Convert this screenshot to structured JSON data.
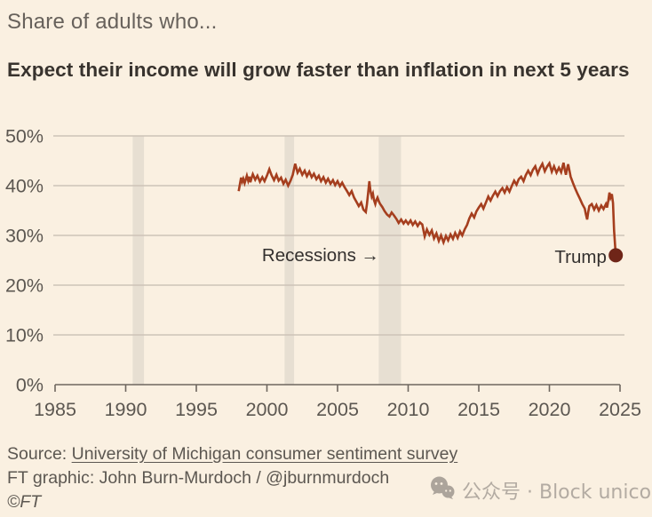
{
  "header": {
    "kicker": "Share of adults who...",
    "title": "Expect their income will grow faster than inflation in next 5 years"
  },
  "chart_data": {
    "type": "line",
    "title": "Share of adults who... Expect their income will grow faster than inflation in next 5 years",
    "grid": "horizontal",
    "x_axis": {
      "ticks": [
        1985,
        1990,
        1995,
        2000,
        2005,
        2010,
        2015,
        2020,
        2025
      ],
      "range": [
        1985,
        2025.6
      ]
    },
    "y_axis": {
      "ticks": [
        0,
        10,
        20,
        30,
        40,
        50
      ],
      "suffix": "%",
      "range": [
        0,
        50
      ]
    },
    "recessions": [
      [
        1990.5,
        1991.3
      ],
      [
        2001.25,
        2001.92
      ],
      [
        2007.92,
        2009.5
      ]
    ],
    "annotations": [
      {
        "text": "Recessions →",
        "year": 1999.65,
        "value": 24.8,
        "anchor": "start"
      },
      {
        "text": "Trump",
        "year": 2024.05,
        "value": 24.5,
        "anchor": "end"
      }
    ],
    "end_marker": {
      "year": 2024.7,
      "value": 26.0,
      "label": "Trump"
    },
    "series": [
      {
        "name": "Share expecting income to grow faster than inflation in next 5 years (%)",
        "points": [
          [
            1998.0,
            38.9
          ],
          [
            1998.08,
            40.2
          ],
          [
            1998.17,
            41.6
          ],
          [
            1998.25,
            40.8
          ],
          [
            1998.33,
            41.4
          ],
          [
            1998.42,
            40.5
          ],
          [
            1998.5,
            41.2
          ],
          [
            1998.58,
            42.0
          ],
          [
            1998.67,
            41.0
          ],
          [
            1998.75,
            41.8
          ],
          [
            1998.83,
            40.7
          ],
          [
            1998.92,
            41.6
          ],
          [
            1999.0,
            42.3
          ],
          [
            1999.17,
            41.2
          ],
          [
            1999.33,
            42.0
          ],
          [
            1999.5,
            40.8
          ],
          [
            1999.67,
            41.7
          ],
          [
            1999.83,
            40.9
          ],
          [
            2000.0,
            42.0
          ],
          [
            2000.17,
            43.3
          ],
          [
            2000.33,
            42.1
          ],
          [
            2000.5,
            41.1
          ],
          [
            2000.67,
            42.2
          ],
          [
            2000.83,
            41.0
          ],
          [
            2001.0,
            41.6
          ],
          [
            2001.17,
            40.4
          ],
          [
            2001.33,
            41.2
          ],
          [
            2001.5,
            40.0
          ],
          [
            2001.67,
            41.0
          ],
          [
            2001.83,
            42.2
          ],
          [
            2002.0,
            44.4
          ],
          [
            2002.17,
            42.6
          ],
          [
            2002.33,
            43.4
          ],
          [
            2002.5,
            42.2
          ],
          [
            2002.67,
            43.0
          ],
          [
            2002.83,
            41.9
          ],
          [
            2003.0,
            42.8
          ],
          [
            2003.17,
            41.7
          ],
          [
            2003.33,
            42.4
          ],
          [
            2003.5,
            41.3
          ],
          [
            2003.67,
            42.0
          ],
          [
            2003.83,
            40.9
          ],
          [
            2004.0,
            41.7
          ],
          [
            2004.17,
            40.6
          ],
          [
            2004.33,
            41.4
          ],
          [
            2004.5,
            40.4
          ],
          [
            2004.67,
            41.1
          ],
          [
            2004.83,
            40.1
          ],
          [
            2005.0,
            40.9
          ],
          [
            2005.17,
            39.9
          ],
          [
            2005.33,
            40.6
          ],
          [
            2005.5,
            39.7
          ],
          [
            2005.67,
            38.9
          ],
          [
            2005.83,
            38.1
          ],
          [
            2006.0,
            38.9
          ],
          [
            2006.17,
            37.6
          ],
          [
            2006.33,
            36.8
          ],
          [
            2006.5,
            35.9
          ],
          [
            2006.67,
            36.6
          ],
          [
            2006.83,
            35.2
          ],
          [
            2007.0,
            34.7
          ],
          [
            2007.08,
            36.3
          ],
          [
            2007.17,
            38.6
          ],
          [
            2007.25,
            40.9
          ],
          [
            2007.33,
            39.0
          ],
          [
            2007.42,
            37.8
          ],
          [
            2007.5,
            38.4
          ],
          [
            2007.58,
            37.1
          ],
          [
            2007.67,
            36.3
          ],
          [
            2007.75,
            37.1
          ],
          [
            2007.83,
            37.6
          ],
          [
            2007.92,
            36.9
          ],
          [
            2008.0,
            36.4
          ],
          [
            2008.17,
            35.7
          ],
          [
            2008.33,
            34.9
          ],
          [
            2008.5,
            34.2
          ],
          [
            2008.67,
            33.8
          ],
          [
            2008.83,
            34.6
          ],
          [
            2009.0,
            34.0
          ],
          [
            2009.17,
            33.3
          ],
          [
            2009.33,
            32.5
          ],
          [
            2009.5,
            33.2
          ],
          [
            2009.67,
            32.4
          ],
          [
            2009.83,
            33.0
          ],
          [
            2010.0,
            32.3
          ],
          [
            2010.17,
            33.0
          ],
          [
            2010.33,
            32.1
          ],
          [
            2010.5,
            32.8
          ],
          [
            2010.67,
            31.9
          ],
          [
            2010.83,
            32.6
          ],
          [
            2011.0,
            32.2
          ],
          [
            2011.17,
            29.8
          ],
          [
            2011.33,
            31.2
          ],
          [
            2011.5,
            30.1
          ],
          [
            2011.67,
            31.0
          ],
          [
            2011.83,
            29.4
          ],
          [
            2012.0,
            30.4
          ],
          [
            2012.17,
            28.9
          ],
          [
            2012.33,
            30.0
          ],
          [
            2012.5,
            28.6
          ],
          [
            2012.67,
            29.9
          ],
          [
            2012.83,
            29.0
          ],
          [
            2013.0,
            30.2
          ],
          [
            2013.17,
            29.3
          ],
          [
            2013.33,
            30.5
          ],
          [
            2013.5,
            29.5
          ],
          [
            2013.67,
            30.8
          ],
          [
            2013.83,
            30.0
          ],
          [
            2014.0,
            31.2
          ],
          [
            2014.17,
            32.1
          ],
          [
            2014.33,
            33.4
          ],
          [
            2014.5,
            34.4
          ],
          [
            2014.67,
            33.6
          ],
          [
            2014.83,
            34.8
          ],
          [
            2015.0,
            35.6
          ],
          [
            2015.17,
            36.3
          ],
          [
            2015.33,
            35.4
          ],
          [
            2015.5,
            36.6
          ],
          [
            2015.67,
            37.8
          ],
          [
            2015.83,
            37.0
          ],
          [
            2016.0,
            38.0
          ],
          [
            2016.17,
            38.8
          ],
          [
            2016.33,
            37.9
          ],
          [
            2016.5,
            38.9
          ],
          [
            2016.67,
            39.5
          ],
          [
            2016.83,
            38.6
          ],
          [
            2017.0,
            39.7
          ],
          [
            2017.17,
            38.8
          ],
          [
            2017.33,
            39.9
          ],
          [
            2017.5,
            41.0
          ],
          [
            2017.67,
            40.2
          ],
          [
            2017.83,
            41.3
          ],
          [
            2018.0,
            41.8
          ],
          [
            2018.17,
            40.9
          ],
          [
            2018.33,
            42.1
          ],
          [
            2018.5,
            43.0
          ],
          [
            2018.67,
            42.1
          ],
          [
            2018.83,
            43.2
          ],
          [
            2019.0,
            43.9
          ],
          [
            2019.17,
            42.4
          ],
          [
            2019.33,
            43.5
          ],
          [
            2019.5,
            44.4
          ],
          [
            2019.67,
            42.9
          ],
          [
            2019.83,
            43.8
          ],
          [
            2020.0,
            44.5
          ],
          [
            2020.17,
            42.8
          ],
          [
            2020.33,
            43.9
          ],
          [
            2020.5,
            42.6
          ],
          [
            2020.67,
            43.6
          ],
          [
            2020.83,
            42.7
          ],
          [
            2021.0,
            44.6
          ],
          [
            2021.08,
            43.3
          ],
          [
            2021.17,
            42.2
          ],
          [
            2021.25,
            43.4
          ],
          [
            2021.33,
            44.3
          ],
          [
            2021.42,
            43.0
          ],
          [
            2021.5,
            41.8
          ],
          [
            2021.67,
            40.5
          ],
          [
            2021.83,
            39.4
          ],
          [
            2022.0,
            38.3
          ],
          [
            2022.17,
            37.3
          ],
          [
            2022.33,
            36.3
          ],
          [
            2022.5,
            35.4
          ],
          [
            2022.58,
            34.3
          ],
          [
            2022.67,
            33.2
          ],
          [
            2022.75,
            34.7
          ],
          [
            2022.83,
            35.9
          ],
          [
            2023.0,
            36.3
          ],
          [
            2023.17,
            35.2
          ],
          [
            2023.33,
            36.1
          ],
          [
            2023.5,
            35.0
          ],
          [
            2023.67,
            36.0
          ],
          [
            2023.83,
            35.3
          ],
          [
            2024.0,
            36.3
          ],
          [
            2024.08,
            35.6
          ],
          [
            2024.17,
            37.0
          ],
          [
            2024.25,
            38.6
          ],
          [
            2024.33,
            37.6
          ],
          [
            2024.42,
            38.3
          ],
          [
            2024.5,
            36.5
          ],
          [
            2024.58,
            31.0
          ],
          [
            2024.7,
            26.0
          ]
        ]
      }
    ]
  },
  "footer": {
    "source_prefix": "Source: ",
    "source_link": "University of Michigan consumer sentiment survey",
    "credit": "FT graphic: John Burn-Murdoch / @jburnmurdoch",
    "copyright": "©FT"
  },
  "watermark": {
    "icon": "wechat-icon",
    "text": "公众号 · Block unicorn"
  },
  "colors": {
    "background": "#faf0e1",
    "line": "#a53e1e",
    "marker": "#6f2518",
    "gridline": "#cdc4b7",
    "axis": "#6e675f",
    "recession_band": "#e7dfd2",
    "kicker_text": "#67615b",
    "title_text": "#38332e",
    "annotation_text": "#33302e",
    "tick_label_text": "#5c5751",
    "footer_text": "#5c5751",
    "watermark_text": "#b3aba2"
  }
}
